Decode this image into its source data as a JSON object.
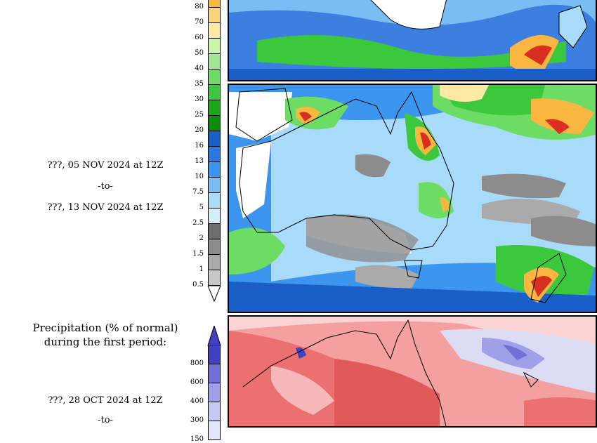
{
  "left_panel": {
    "period2": {
      "line1": "???, 05 NOV 2024 at 12Z",
      "line2": "-to-",
      "line3": "???, 13 NOV 2024 at 12Z"
    },
    "anomaly_title": {
      "line1": "Precipitation (% of normal)",
      "line2": "during the first period:"
    },
    "period1": {
      "line1": "???, 28 OCT 2024 at 12Z",
      "line2": "-to-"
    }
  },
  "precip_colorbar": {
    "labels": [
      "80",
      "70",
      "60",
      "50",
      "40",
      "35",
      "30",
      "25",
      "20",
      "16",
      "13",
      "10",
      "7.5",
      "5",
      "2.5",
      "2",
      "1.5",
      "1",
      "0.5"
    ],
    "colors": [
      "#f9b640",
      "#fbd47a",
      "#fde8a4",
      "#c8f5a8",
      "#a0e890",
      "#6ddc64",
      "#3cc83c",
      "#18a818",
      "#0a8c0a",
      "#1a5ec8",
      "#2878e0",
      "#3c96f0",
      "#78bef4",
      "#a8dafa",
      "#d4eefc",
      "#6e6e6e",
      "#8c8c8c",
      "#aaaaaa",
      "#c8c8c8"
    ]
  },
  "anomaly_colorbar": {
    "labels": [
      "800",
      "600",
      "400",
      "300",
      "150"
    ],
    "colors": [
      "#4040c0",
      "#7070d8",
      "#a0a0e8",
      "#c8c8f4",
      "#e4e4fa"
    ]
  }
}
